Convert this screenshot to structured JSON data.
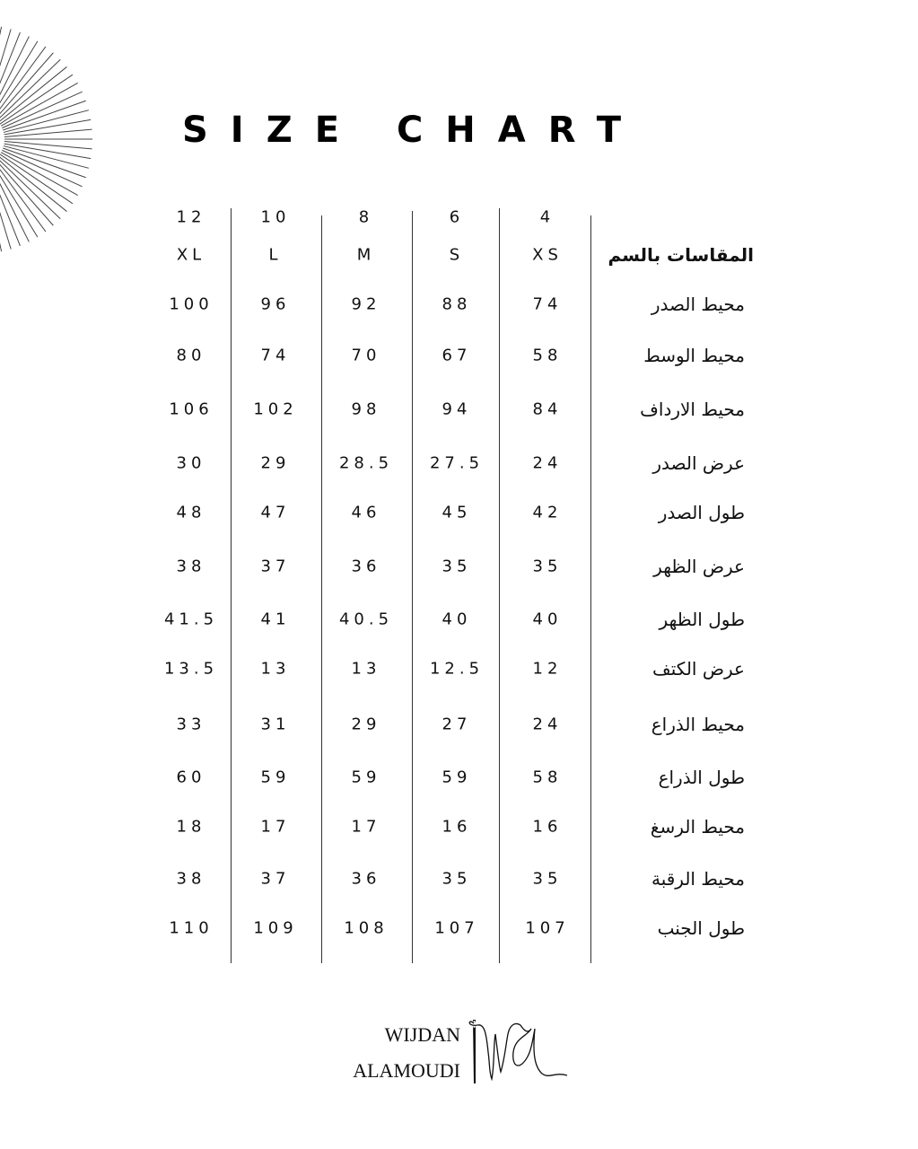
{
  "title": "SIZE CHART",
  "header_label": "المقاسات بالسم",
  "columns": [
    {
      "number": "12",
      "size": "XL"
    },
    {
      "number": "10",
      "size": "L"
    },
    {
      "number": "8",
      "size": "M"
    },
    {
      "number": "6",
      "size": "S"
    },
    {
      "number": "4",
      "size": "XS"
    }
  ],
  "rows": [
    {
      "label": "محيط الصدر",
      "values": [
        "100",
        "96",
        "92",
        "88",
        "74"
      ]
    },
    {
      "label": "محيط الوسط",
      "values": [
        "80",
        "74",
        "70",
        "67",
        "58"
      ]
    },
    {
      "label": "محيط الارداف",
      "values": [
        "106",
        "102",
        "98",
        "94",
        "84"
      ]
    },
    {
      "label": "عرض الصدر",
      "values": [
        "30",
        "29",
        "28.5",
        "27.5",
        "24"
      ]
    },
    {
      "label": "طول الصدر",
      "values": [
        "48",
        "47",
        "46",
        "45",
        "42"
      ]
    },
    {
      "label": "عرض الظهر",
      "values": [
        "38",
        "37",
        "36",
        "35",
        "35"
      ]
    },
    {
      "label": "طول الظهر",
      "values": [
        "41.5",
        "41",
        "40.5",
        "40",
        "40"
      ]
    },
    {
      "label": "عرض الكتف",
      "values": [
        "13.5",
        "13",
        "13",
        "12.5",
        "12"
      ]
    },
    {
      "label": "محيط الذراع",
      "values": [
        "33",
        "31",
        "29",
        "27",
        "24"
      ]
    },
    {
      "label": "طول الذراع",
      "values": [
        "60",
        "59",
        "59",
        "59",
        "58"
      ]
    },
    {
      "label": "محيط الرسغ",
      "values": [
        "18",
        "17",
        "17",
        "16",
        "16"
      ]
    },
    {
      "label": "محيط الرقبة",
      "values": [
        "38",
        "37",
        "36",
        "35",
        "35"
      ]
    },
    {
      "label": "طول الجنب",
      "values": [
        "110",
        "109",
        "108",
        "107",
        "107"
      ]
    }
  ],
  "logo": {
    "line1": "WIJDAN",
    "line2": "ALAMOUDI",
    "icon": "needle-and-thread-signature-icon"
  },
  "decoration": {
    "icon": "starburst-icon"
  },
  "colors": {
    "text": "#111111",
    "background": "#ffffff"
  }
}
